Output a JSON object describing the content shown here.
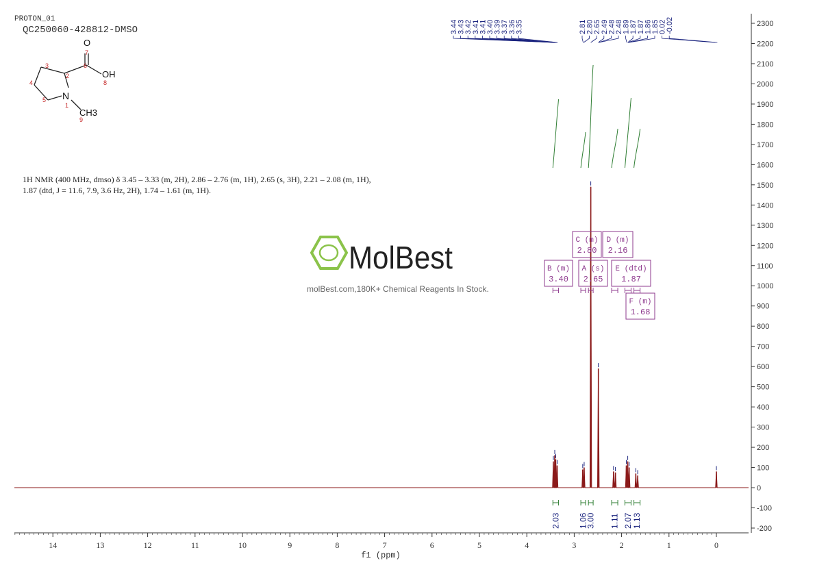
{
  "header": {
    "experiment": "PROTON_01",
    "sample": "QC250060-428812-DMSO"
  },
  "structure": {
    "atom_labels": [
      "1",
      "2",
      "3",
      "4",
      "5",
      "6",
      "7",
      "8",
      "9"
    ],
    "groups": {
      "N": "N",
      "O": "O",
      "OH": "OH",
      "CH3": "CH3"
    }
  },
  "nmr_description": {
    "line1": "1H NMR (400 MHz, dmso) δ 3.45 – 3.33 (m, 2H), 2.86 – 2.76 (m, 1H), 2.65 (s, 3H), 2.21 – 2.08 (m, 1H),",
    "line2": "1.87 (dtd, J = 11.6, 7.9, 3.6 Hz, 2H), 1.74 – 1.61 (m, 1H)."
  },
  "watermark": {
    "brand": "MolBest",
    "tagline": "molBest.com,180K+ Chemical Reagents In Stock."
  },
  "colors": {
    "spectrum": "#8b1a1a",
    "peak_labels": "#1a237e",
    "integral": "#2e7d32",
    "multiplet_box": "#8e3a8e",
    "axis": "#333333",
    "watermark_green": "#8bc34a"
  },
  "chart_data": {
    "type": "line",
    "xlabel": "f1 (ppm)",
    "x_reversed": true,
    "xlim": [
      14.5,
      -0.65
    ],
    "ylim": [
      -200,
      2300
    ],
    "x_ticks": [
      "14",
      "13",
      "12",
      "11",
      "10",
      "9",
      "8",
      "7",
      "6",
      "5",
      "4",
      "3",
      "2",
      "1",
      "0"
    ],
    "y_ticks": [
      "2300",
      "2200",
      "2100",
      "2000",
      "1900",
      "1800",
      "1700",
      "1600",
      "1500",
      "1400",
      "1300",
      "1200",
      "1100",
      "1000",
      "900",
      "800",
      "700",
      "600",
      "500",
      "400",
      "300",
      "200",
      "100",
      "0",
      "-100",
      "-200"
    ],
    "peak_labels_group1": [
      "3.44",
      "3.43",
      "3.42",
      "3.41",
      "3.41",
      "3.40",
      "3.39",
      "3.37",
      "3.36",
      "3.35"
    ],
    "peak_labels_group2": [
      "2.81",
      "2.80",
      "2.65",
      "2.49",
      "2.48",
      "2.48",
      "1.89",
      "1.87",
      "1.87",
      "1.86",
      "1.85",
      "0.02",
      "-0.02"
    ],
    "peaks": [
      {
        "ppm": 3.44,
        "height": 130
      },
      {
        "ppm": 3.41,
        "height": 160
      },
      {
        "ppm": 3.39,
        "height": 140
      },
      {
        "ppm": 3.36,
        "height": 110
      },
      {
        "ppm": 2.82,
        "height": 90
      },
      {
        "ppm": 2.79,
        "height": 100
      },
      {
        "ppm": 2.65,
        "height": 1490
      },
      {
        "ppm": 2.49,
        "height": 590
      },
      {
        "ppm": 2.17,
        "height": 80
      },
      {
        "ppm": 2.13,
        "height": 75
      },
      {
        "ppm": 1.9,
        "height": 110
      },
      {
        "ppm": 1.87,
        "height": 130
      },
      {
        "ppm": 1.84,
        "height": 100
      },
      {
        "ppm": 1.7,
        "height": 70
      },
      {
        "ppm": 1.66,
        "height": 60
      },
      {
        "ppm": 0.0,
        "height": 80
      }
    ],
    "integrals": [
      {
        "from": 3.45,
        "to": 3.33,
        "value": "2.03"
      },
      {
        "from": 2.86,
        "to": 2.76,
        "value": "1.06"
      },
      {
        "from": 2.7,
        "to": 2.6,
        "value": "3.00"
      },
      {
        "from": 2.21,
        "to": 2.08,
        "value": "1.11"
      },
      {
        "from": 1.93,
        "to": 1.8,
        "value": "2.07"
      },
      {
        "from": 1.74,
        "to": 1.61,
        "value": "1.13"
      }
    ],
    "multiplets": [
      {
        "letter": "B",
        "type": "m",
        "shift": "3.40"
      },
      {
        "letter": "C",
        "type": "m",
        "shift": "2.80"
      },
      {
        "letter": "A",
        "type": "s",
        "shift": "2.65"
      },
      {
        "letter": "D",
        "type": "m",
        "shift": "2.16"
      },
      {
        "letter": "E",
        "type": "dtd",
        "shift": "1.87"
      },
      {
        "letter": "F",
        "type": "m",
        "shift": "1.68"
      }
    ]
  }
}
